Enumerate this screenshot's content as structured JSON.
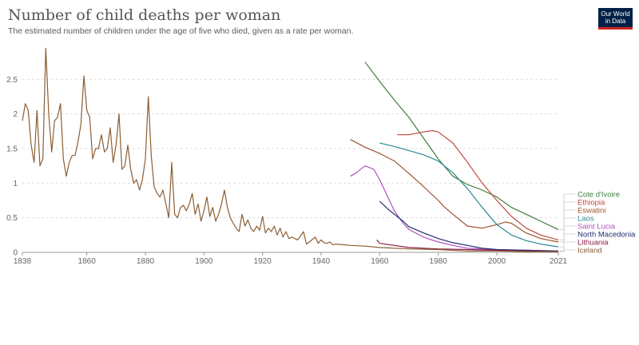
{
  "header": {
    "title": "Number of child deaths per woman",
    "subtitle": "The estimated number of children under the age of five who died, given as a rate per woman.",
    "logo_line1": "Our World",
    "logo_line2": "in Data"
  },
  "colors": {
    "brand_navy": "#002147",
    "brand_red": "#ce261e",
    "grid": "#dddddd"
  },
  "chart_data": {
    "type": "line",
    "title": "Number of child deaths per woman",
    "subtitle": "The estimated number of children under the age of five who died, given as a rate per woman.",
    "xlabel": "",
    "ylabel": "",
    "xlim": [
      1838,
      2021
    ],
    "ylim": [
      0,
      3
    ],
    "xticks": [
      1838,
      1860,
      1880,
      1900,
      1920,
      1940,
      1960,
      1980,
      2000,
      2021
    ],
    "yticks": [
      0,
      0.5,
      1,
      1.5,
      2,
      2.5
    ],
    "grid": "horizontal-dashed",
    "legend": "right",
    "series": [
      {
        "name": "Cote d'Ivoire",
        "color": "#3f7f3a",
        "x": [
          1955,
          1960,
          1965,
          1970,
          1975,
          1980,
          1985,
          1990,
          1995,
          2000,
          2005,
          2010,
          2015,
          2021
        ],
        "y": [
          2.75,
          2.47,
          2.2,
          1.95,
          1.65,
          1.35,
          1.1,
          0.98,
          0.9,
          0.8,
          0.65,
          0.55,
          0.45,
          0.33
        ]
      },
      {
        "name": "Ethiopia",
        "color": "#c0473d",
        "x": [
          1966,
          1970,
          1975,
          1978,
          1980,
          1985,
          1990,
          1995,
          2000,
          2005,
          2010,
          2015,
          2021
        ],
        "y": [
          1.7,
          1.7,
          1.74,
          1.76,
          1.74,
          1.58,
          1.3,
          1.0,
          0.75,
          0.52,
          0.35,
          0.25,
          0.18
        ]
      },
      {
        "name": "Eswatini",
        "color": "#a0522d",
        "x": [
          1950,
          1955,
          1960,
          1965,
          1970,
          1975,
          1980,
          1982,
          1985,
          1990,
          1995,
          2000,
          2003,
          2005,
          2010,
          2015,
          2021
        ],
        "y": [
          1.63,
          1.52,
          1.43,
          1.32,
          1.14,
          0.95,
          0.75,
          0.66,
          0.55,
          0.38,
          0.35,
          0.4,
          0.44,
          0.42,
          0.28,
          0.2,
          0.15
        ]
      },
      {
        "name": "Laos",
        "color": "#2a8a95",
        "x": [
          1960,
          1965,
          1970,
          1975,
          1980,
          1985,
          1990,
          1995,
          2000,
          2005,
          2010,
          2015,
          2021
        ],
        "y": [
          1.58,
          1.53,
          1.47,
          1.41,
          1.32,
          1.15,
          0.92,
          0.65,
          0.4,
          0.25,
          0.17,
          0.12,
          0.08
        ]
      },
      {
        "name": "Saint Lucia",
        "color": "#b04fc0",
        "x": [
          1950,
          1952,
          1955,
          1958,
          1960,
          1963,
          1965,
          1968,
          1970,
          1975,
          1980,
          1985,
          1990,
          2000,
          2010,
          2021
        ],
        "y": [
          1.1,
          1.15,
          1.25,
          1.2,
          1.05,
          0.78,
          0.6,
          0.42,
          0.33,
          0.22,
          0.15,
          0.1,
          0.06,
          0.04,
          0.03,
          0.02
        ]
      },
      {
        "name": "North Macedonia",
        "color": "#1f2e6e",
        "x": [
          1960,
          1963,
          1965,
          1968,
          1970,
          1975,
          1980,
          1985,
          1990,
          1995,
          2000,
          2010,
          2021
        ],
        "y": [
          0.74,
          0.62,
          0.55,
          0.45,
          0.37,
          0.28,
          0.2,
          0.14,
          0.1,
          0.06,
          0.04,
          0.03,
          0.02
        ]
      },
      {
        "name": "Lithuania",
        "color": "#8b1a4a",
        "x": [
          1959,
          1960,
          1965,
          1970,
          1975,
          1980,
          1990,
          2000,
          2010,
          2021
        ],
        "y": [
          0.18,
          0.13,
          0.1,
          0.07,
          0.06,
          0.05,
          0.04,
          0.03,
          0.02,
          0.01
        ]
      },
      {
        "name": "Iceland",
        "color": "#8b5e34",
        "x": [
          1838,
          1839,
          1840,
          1841,
          1842,
          1843,
          1844,
          1845,
          1846,
          1847,
          1848,
          1849,
          1850,
          1851,
          1852,
          1853,
          1854,
          1855,
          1856,
          1857,
          1858,
          1859,
          1860,
          1861,
          1862,
          1863,
          1864,
          1865,
          1866,
          1867,
          1868,
          1869,
          1870,
          1871,
          1872,
          1873,
          1874,
          1875,
          1876,
          1877,
          1878,
          1879,
          1880,
          1881,
          1882,
          1883,
          1884,
          1885,
          1886,
          1887,
          1888,
          1889,
          1890,
          1891,
          1892,
          1893,
          1894,
          1895,
          1896,
          1897,
          1898,
          1899,
          1900,
          1901,
          1902,
          1903,
          1904,
          1905,
          1906,
          1907,
          1908,
          1909,
          1910,
          1911,
          1912,
          1913,
          1914,
          1915,
          1916,
          1917,
          1918,
          1919,
          1920,
          1921,
          1922,
          1923,
          1924,
          1925,
          1926,
          1927,
          1928,
          1929,
          1930,
          1932,
          1934,
          1935,
          1936,
          1938,
          1939,
          1940,
          1941,
          1942,
          1943,
          1944,
          1945,
          1950,
          1955,
          1960,
          1970,
          1980,
          1990,
          2000,
          2010,
          2021
        ],
        "y": [
          1.9,
          2.15,
          2.05,
          1.55,
          1.3,
          2.05,
          1.25,
          1.35,
          2.95,
          2.0,
          1.45,
          1.9,
          1.95,
          2.15,
          1.35,
          1.1,
          1.3,
          1.4,
          1.4,
          1.6,
          1.85,
          2.55,
          2.05,
          1.95,
          1.35,
          1.5,
          1.5,
          1.7,
          1.45,
          1.5,
          1.8,
          1.3,
          1.55,
          2.0,
          1.2,
          1.25,
          1.55,
          1.2,
          1.0,
          1.05,
          0.9,
          1.05,
          1.35,
          2.25,
          1.4,
          0.95,
          0.85,
          0.8,
          0.9,
          0.7,
          0.5,
          1.3,
          0.55,
          0.5,
          0.65,
          0.68,
          0.6,
          0.7,
          0.85,
          0.55,
          0.7,
          0.45,
          0.6,
          0.8,
          0.52,
          0.65,
          0.45,
          0.55,
          0.7,
          0.9,
          0.65,
          0.5,
          0.42,
          0.35,
          0.3,
          0.55,
          0.38,
          0.47,
          0.35,
          0.3,
          0.38,
          0.32,
          0.52,
          0.28,
          0.35,
          0.3,
          0.38,
          0.25,
          0.35,
          0.22,
          0.3,
          0.2,
          0.22,
          0.18,
          0.3,
          0.12,
          0.15,
          0.22,
          0.13,
          0.18,
          0.14,
          0.13,
          0.15,
          0.11,
          0.12,
          0.1,
          0.09,
          0.07,
          0.05,
          0.04,
          0.02,
          0.02,
          0.01,
          0.01
        ]
      }
    ]
  }
}
